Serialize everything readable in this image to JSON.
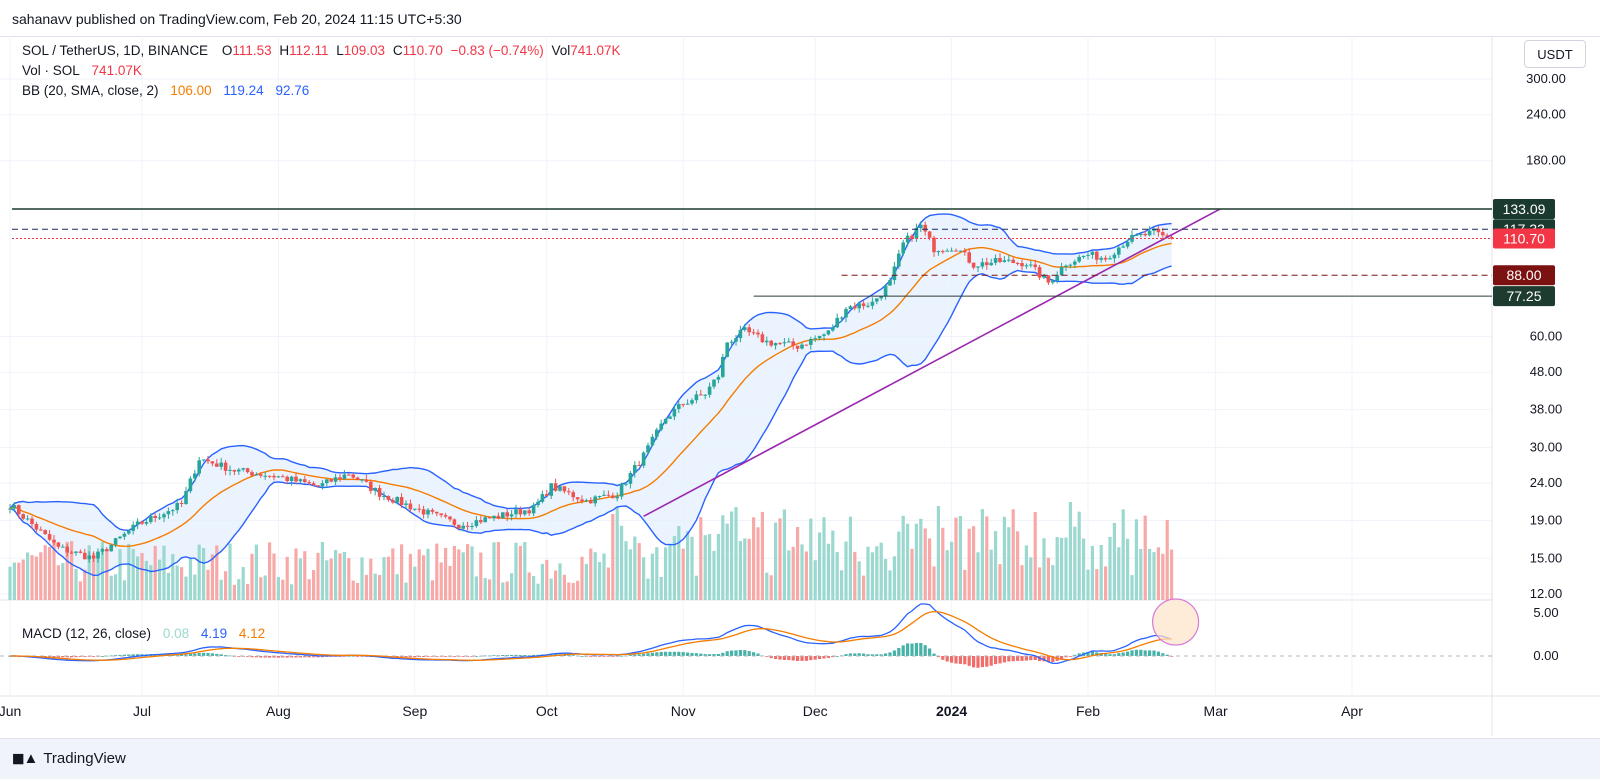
{
  "header": {
    "publisher_line": "sahanavv published on TradingView.com, Feb 20, 2024 11:15 UTC+5:30"
  },
  "legend": {
    "symbol": "SOL / TetherUS, 1D, BINANCE",
    "o_label": "O",
    "o_value": "111.53",
    "h_label": "H",
    "h_value": "112.11",
    "l_label": "L",
    "l_value": "109.03",
    "c_label": "C",
    "c_value": "110.70",
    "change": "−0.83 (−0.74%)",
    "vol_label": "Vol",
    "vol_value": "741.07K",
    "vol_series_label": "Vol · SOL",
    "vol_series_value": "741.07K",
    "bb_label": "BB (20, SMA, close, 2)",
    "bb_basis": "106.00",
    "bb_upper": "119.24",
    "bb_lower": "92.76",
    "macd_label": "MACD (12, 26, close)",
    "macd_hist": "0.08",
    "macd_line": "4.19",
    "macd_signal": "4.12"
  },
  "currency_button": "USDT",
  "footer": {
    "brand": "TradingView"
  },
  "colors": {
    "up": "#26a69a",
    "down": "#ef5350",
    "bb": "#2962ff",
    "basis": "#f57c00",
    "trend": "#9c27b0",
    "fill": "#e3effd",
    "dark": "#1b3a2f",
    "red_tag": "#f23645",
    "dark_red": "#7b1111"
  },
  "chart_data": {
    "type": "candlestick",
    "symbol": "SOL / TetherUS",
    "interval": "1D",
    "exchange": "BINANCE",
    "price_axis": {
      "scale": "log",
      "ticks": [
        "300.00",
        "240.00",
        "180.00",
        "133.09",
        "117.33",
        "110.70",
        "88.00",
        "77.25",
        "60.00",
        "48.00",
        "38.00",
        "30.00",
        "24.00",
        "19.00",
        "15.00",
        "12.00"
      ],
      "range": [
        12,
        330
      ]
    },
    "macd_axis": {
      "ticks": [
        "5.00",
        "0.00"
      ]
    },
    "x_axis": {
      "ticks": [
        "Jun",
        "Jul",
        "Aug",
        "Sep",
        "Oct",
        "Nov",
        "Dec",
        "2024",
        "Feb",
        "Mar",
        "Apr"
      ]
    },
    "levels": [
      {
        "value": 133.09,
        "label": "133.09",
        "style": "solid"
      },
      {
        "value": 117.33,
        "label": "117.33",
        "style": "dashed"
      },
      {
        "value": 110.7,
        "label": "110.70",
        "style": "dotted"
      },
      {
        "value": 88.0,
        "label": "88.00",
        "style": "dashed"
      },
      {
        "value": 77.25,
        "label": "77.25",
        "style": "solid"
      }
    ],
    "trendline": {
      "from": [
        "2023-10-23",
        19.5
      ],
      "to": [
        "2024-03-02",
        133.09
      ]
    },
    "close_anchors": [
      [
        "2023-06-01",
        21.0
      ],
      [
        "2023-06-12",
        16.0
      ],
      [
        "2023-06-20",
        15.0
      ],
      [
        "2023-06-30",
        18.5
      ],
      [
        "2023-07-10",
        21.0
      ],
      [
        "2023-07-14",
        28.0
      ],
      [
        "2023-07-22",
        26.0
      ],
      [
        "2023-08-01",
        25.0
      ],
      [
        "2023-08-10",
        23.5
      ],
      [
        "2023-08-17",
        25.5
      ],
      [
        "2023-08-24",
        22.5
      ],
      [
        "2023-09-01",
        20.5
      ],
      [
        "2023-09-11",
        18.5
      ],
      [
        "2023-09-20",
        19.5
      ],
      [
        "2023-09-28",
        20.5
      ],
      [
        "2023-10-02",
        23.5
      ],
      [
        "2023-10-10",
        21.5
      ],
      [
        "2023-10-17",
        22.5
      ],
      [
        "2023-10-23",
        28.5
      ],
      [
        "2023-10-28",
        36.0
      ],
      [
        "2023-11-01",
        39.5
      ],
      [
        "2023-11-06",
        42.0
      ],
      [
        "2023-11-09",
        47.0
      ],
      [
        "2023-11-11",
        58.0
      ],
      [
        "2023-11-15",
        62.0
      ],
      [
        "2023-11-20",
        58.0
      ],
      [
        "2023-11-27",
        56.5
      ],
      [
        "2023-12-04",
        61.5
      ],
      [
        "2023-12-08",
        72.0
      ],
      [
        "2023-12-14",
        74.0
      ],
      [
        "2023-12-18",
        84.0
      ],
      [
        "2023-12-21",
        107.0
      ],
      [
        "2023-12-25",
        120.0
      ],
      [
        "2023-12-28",
        104.0
      ],
      [
        "2024-01-02",
        105.0
      ],
      [
        "2024-01-06",
        94.0
      ],
      [
        "2024-01-12",
        96.0
      ],
      [
        "2024-01-18",
        95.0
      ],
      [
        "2024-01-23",
        84.0
      ],
      [
        "2024-01-27",
        95.0
      ],
      [
        "2024-02-01",
        100.0
      ],
      [
        "2024-02-05",
        98.0
      ],
      [
        "2024-02-10",
        110.0
      ],
      [
        "2024-02-16",
        115.0
      ],
      [
        "2024-02-18",
        112.0
      ],
      [
        "2024-02-20",
        110.7
      ]
    ],
    "last": {
      "date": "2024-02-20",
      "open": 111.53,
      "high": 112.11,
      "low": 109.03,
      "close": 110.7,
      "volume": "741.07K"
    },
    "bollinger": {
      "basis": 106.0,
      "upper": 119.24,
      "lower": 92.76
    },
    "macd": {
      "histogram": 0.08,
      "macd": 4.19,
      "signal": 4.12
    }
  }
}
